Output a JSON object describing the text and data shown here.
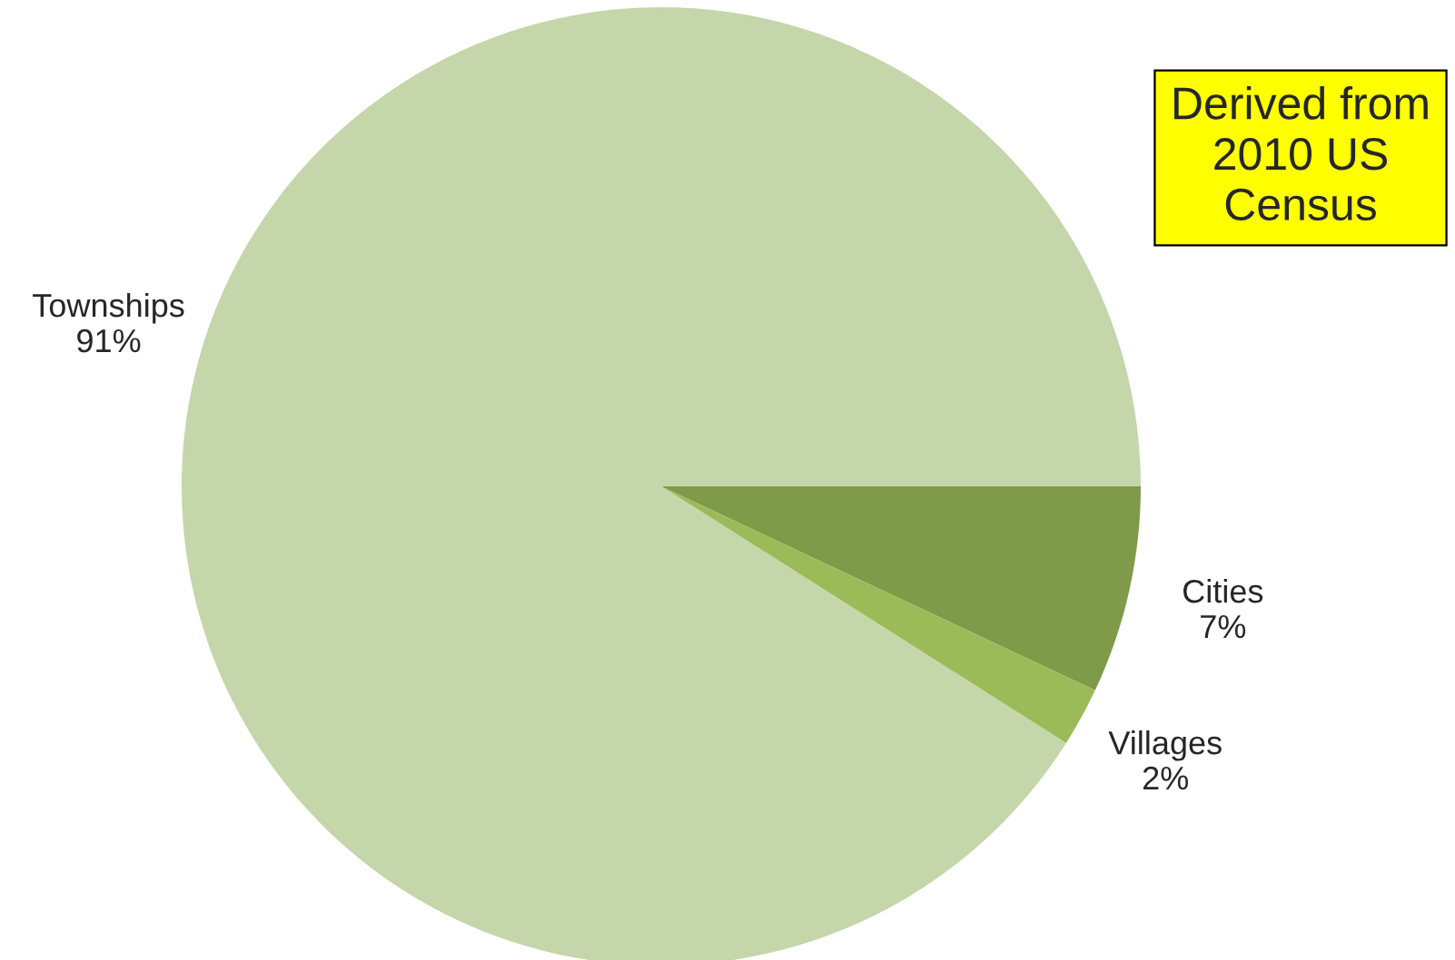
{
  "chart_data": {
    "type": "pie",
    "categories": [
      "Cities",
      "Villages",
      "Townships"
    ],
    "values": [
      7,
      2,
      91
    ],
    "value_labels": [
      "7%",
      "2%",
      "91%"
    ],
    "colors": [
      "#7f9a48",
      "#9bbb59",
      "#c4d6aa"
    ],
    "annotations": [
      "Derived from\n2010 US\nCensus"
    ]
  }
}
